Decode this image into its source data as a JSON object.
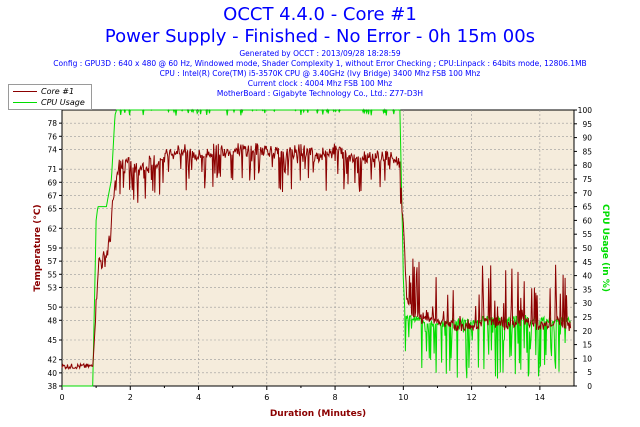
{
  "header": {
    "title_line1": "OCCT 4.4.0 - Core #1",
    "title_line2": "Power Supply - Finished - No Error - 0h 15m 00s",
    "generated": "Generated by OCCT : 2013/09/28 18:28:59",
    "config": "Config : GPU3D : 640 x 480 @ 60 Hz, Windowed mode, Shader Complexity 1, without Error Checking ; CPU:Linpack : 64bits mode, 12806.1MB",
    "cpu": "CPU : Intel(R) Core(TM) i5-3570K CPU @ 3.40GHz (Ivy Bridge) 3400 Mhz FSB 100 Mhz",
    "clock": "Current clock : 4004 Mhz FSB 100 Mhz",
    "motherboard": "MotherBoard : Gigabyte Technology Co., Ltd.: Z77-D3H"
  },
  "colors": {
    "title": "#0000ff",
    "temperature": "#8b0000",
    "cpu_usage": "#00dd00",
    "plot_bg": "#f5ecdc",
    "grid": "#9a9a9a"
  },
  "chart_data": {
    "type": "line",
    "xlabel": "Duration (Minutes)",
    "ylabel_left": "Temperature (°C)",
    "ylabel_right": "CPU Usage (in %)",
    "xlim": [
      0,
      15
    ],
    "ylim_left": [
      38,
      80
    ],
    "ylim_right": [
      0,
      100
    ],
    "x_ticks": [
      0,
      2,
      4,
      6,
      8,
      10,
      12,
      14
    ],
    "y_ticks_left": [
      38,
      40,
      42,
      45,
      48,
      50,
      53,
      55,
      57,
      59,
      62,
      65,
      67,
      69,
      71,
      74,
      76,
      78
    ],
    "y_ticks_right": [
      0,
      5,
      10,
      15,
      20,
      25,
      30,
      35,
      40,
      45,
      50,
      55,
      60,
      65,
      70,
      75,
      80,
      85,
      90,
      95,
      100
    ],
    "grid": true,
    "legend_position": "top-left",
    "series": [
      {
        "name": "Core #1",
        "axis": "left",
        "x": [
          0,
          0.5,
          0.9,
          1.0,
          1.05,
          1.1,
          1.2,
          1.3,
          1.4,
          1.5,
          1.6,
          1.7,
          1.9,
          2.2,
          2.5,
          3.0,
          3.5,
          4.0,
          4.5,
          5.0,
          5.5,
          6.0,
          6.5,
          7.0,
          7.5,
          8.0,
          8.5,
          9.0,
          9.5,
          9.9,
          10.0,
          10.1,
          10.3,
          10.6,
          11.0,
          11.5,
          12.0,
          12.5,
          13.0,
          13.5,
          14.0,
          14.5,
          14.9
        ],
        "y": [
          41,
          41,
          41,
          50,
          56,
          57,
          57,
          58,
          60,
          66,
          70,
          72,
          72,
          71,
          72,
          73,
          74,
          73,
          74,
          74,
          74,
          74,
          73,
          74,
          73,
          74,
          73,
          73,
          73,
          72,
          63,
          51,
          49,
          48,
          48,
          47,
          47,
          48,
          47,
          48,
          47,
          48,
          47
        ]
      },
      {
        "name": "CPU Usage",
        "axis": "right",
        "x": [
          0,
          0.9,
          1.0,
          1.05,
          1.3,
          1.45,
          1.55,
          1.6,
          2.0,
          4.0,
          6.0,
          8.0,
          9.9,
          10.0,
          10.05,
          10.1,
          10.5,
          11.0,
          11.5,
          12.0,
          12.5,
          13.0,
          13.5,
          14.0,
          14.5,
          14.9
        ],
        "y": [
          0,
          0,
          60,
          65,
          65,
          75,
          98,
          100,
          100,
          100,
          100,
          100,
          100,
          40,
          25,
          25,
          24,
          22,
          24,
          23,
          25,
          24,
          25,
          24,
          24,
          24
        ]
      }
    ]
  }
}
